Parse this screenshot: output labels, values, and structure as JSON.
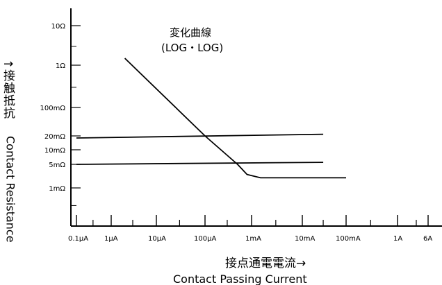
{
  "chart_data": {
    "type": "line",
    "title": "変化曲線",
    "subtitle": "(LOG・LOG)",
    "xlabel_jp": "接点通電電流→",
    "xlabel": "Contact Passing Current",
    "ylabel_jp": "↑接触抵抗",
    "ylabel": "Contact Resistance",
    "x_ticks": [
      {
        "label": "0.1μA",
        "value": 1e-07
      },
      {
        "label": "1μA",
        "value": 1e-06
      },
      {
        "label": "10μA",
        "value": 1e-05
      },
      {
        "label": "100μA",
        "value": 0.0001
      },
      {
        "label": "1mA",
        "value": 0.001
      },
      {
        "label": "10mA",
        "value": 0.01
      },
      {
        "label": "100mA",
        "value": 0.1
      },
      {
        "label": "1A",
        "value": 1
      },
      {
        "label": "6A",
        "value": 6
      }
    ],
    "y_ticks": [
      {
        "label": "10Ω",
        "value": 10
      },
      {
        "label": "1Ω",
        "value": 1
      },
      {
        "label": "100mΩ",
        "value": 0.1
      },
      {
        "label": "20mΩ",
        "value": 0.02
      },
      {
        "label": "10mΩ",
        "value": 0.01
      },
      {
        "label": "5mΩ",
        "value": 0.005
      },
      {
        "label": "1mΩ",
        "value": 0.001
      }
    ],
    "series": [
      {
        "points": [
          [
            2e-06,
            1.5
          ],
          [
            0.0001,
            0.02
          ],
          [
            0.0005,
            0.005
          ],
          [
            0.0008,
            0.0025
          ],
          [
            0.0015,
            0.002
          ],
          [
            0.1,
            0.002
          ]
        ]
      },
      {
        "points": [
          [
            1e-07,
            0.018
          ],
          [
            0.03,
            0.022
          ]
        ]
      },
      {
        "points": [
          [
            1e-07,
            0.005
          ],
          [
            0.03,
            0.0055
          ]
        ]
      }
    ]
  }
}
